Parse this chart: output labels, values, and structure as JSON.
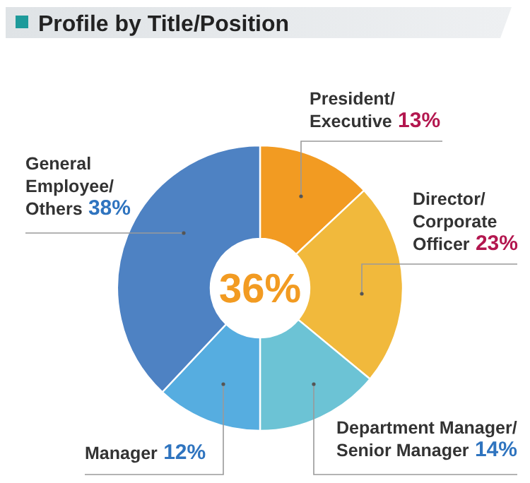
{
  "chart_data": {
    "type": "donut",
    "title": "Profile by Title/Position",
    "categories": [
      "President/\nExecutive",
      "Director/\nCorporate\nOfficer",
      "Department Manager/\nSenior Manager",
      "Manager",
      "General\nEmployee/\nOthers"
    ],
    "values": [
      13,
      23,
      14,
      12,
      38
    ],
    "colors": [
      "#f29b22",
      "#f1b93c",
      "#6cc3d5",
      "#56ade0",
      "#4e82c3"
    ],
    "value_labels": [
      "13%",
      "23%",
      "14%",
      "12%",
      "38%"
    ],
    "annotations": [
      "36%"
    ]
  }
}
